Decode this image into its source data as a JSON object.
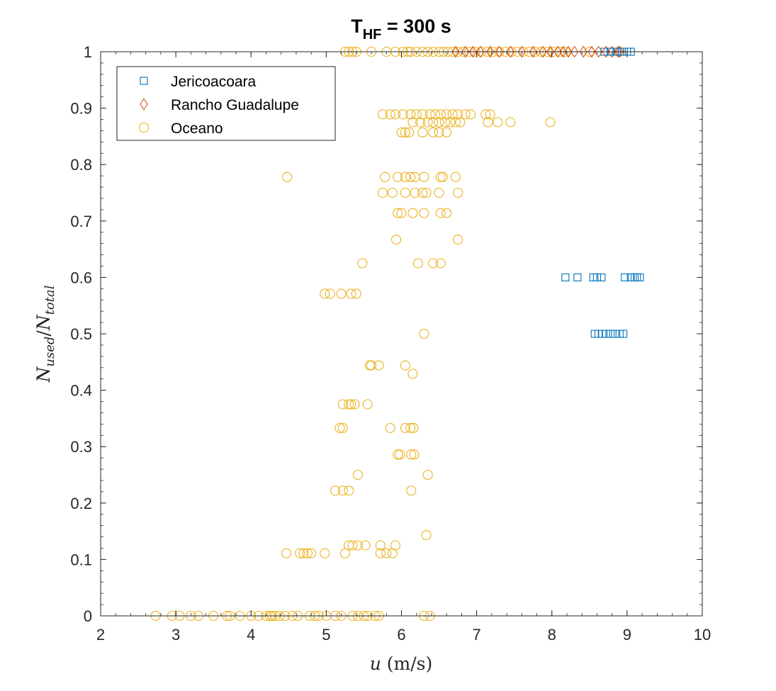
{
  "chart_data": {
    "type": "scatter",
    "title_main": "T",
    "title_sub": "HF",
    "title_rest": " = 300 s",
    "xlabel_var": "u",
    "xlabel_unit": " (m/s)",
    "ylabel": "N_used/N_total",
    "ylabel_parts": {
      "n1": "N",
      "s1": "used",
      "slash": "/",
      "n2": "N",
      "s2": "total"
    },
    "xlim": [
      2,
      10
    ],
    "ylim": [
      0,
      1
    ],
    "xticks": [
      2,
      3,
      4,
      5,
      6,
      7,
      8,
      9,
      10
    ],
    "yticks": [
      0,
      0.1,
      0.2,
      0.3,
      0.4,
      0.5,
      0.6,
      0.7,
      0.8,
      0.9,
      1
    ],
    "grid": false,
    "legend_placement": "top-left",
    "series": [
      {
        "name": "Jericoacoara",
        "marker": "square",
        "color": "#0072BD",
        "points": [
          [
            8.18,
            0.6
          ],
          [
            8.34,
            0.6
          ],
          [
            8.55,
            0.6
          ],
          [
            8.6,
            0.6
          ],
          [
            8.66,
            0.6
          ],
          [
            8.97,
            0.6
          ],
          [
            9.05,
            0.6
          ],
          [
            9.1,
            0.6
          ],
          [
            9.13,
            0.6
          ],
          [
            9.17,
            0.6
          ],
          [
            8.57,
            0.5
          ],
          [
            8.62,
            0.5
          ],
          [
            8.67,
            0.5
          ],
          [
            8.72,
            0.5
          ],
          [
            8.78,
            0.5
          ],
          [
            8.84,
            0.5
          ],
          [
            8.9,
            0.5
          ],
          [
            8.95,
            0.5
          ],
          [
            8.7,
            1
          ],
          [
            8.78,
            1
          ],
          [
            8.86,
            1
          ],
          [
            8.93,
            1
          ],
          [
            9.0,
            1
          ],
          [
            9.05,
            1
          ]
        ]
      },
      {
        "name": "Rancho Guadalupe",
        "marker": "diamond",
        "color": "#D95319",
        "points": [
          [
            6.72,
            1
          ],
          [
            6.85,
            1
          ],
          [
            6.95,
            1
          ],
          [
            7.05,
            1
          ],
          [
            7.18,
            1
          ],
          [
            7.3,
            1
          ],
          [
            7.45,
            1
          ],
          [
            7.6,
            1
          ],
          [
            7.75,
            1
          ],
          [
            7.88,
            1
          ],
          [
            7.98,
            1
          ],
          [
            8.08,
            1
          ],
          [
            8.15,
            1
          ],
          [
            8.22,
            1
          ],
          [
            8.3,
            1
          ],
          [
            8.42,
            1
          ],
          [
            8.53,
            1
          ],
          [
            8.62,
            1
          ],
          [
            8.72,
            1
          ],
          [
            8.8,
            1
          ],
          [
            8.88,
            1
          ],
          [
            8.9,
            1
          ]
        ]
      },
      {
        "name": "Oceano",
        "marker": "circle",
        "color": "#EDB120",
        "points": [
          [
            5.25,
            1
          ],
          [
            5.3,
            1
          ],
          [
            5.35,
            1
          ],
          [
            5.4,
            1
          ],
          [
            5.6,
            1
          ],
          [
            5.8,
            1
          ],
          [
            5.92,
            1
          ],
          [
            6.02,
            1
          ],
          [
            6.08,
            1
          ],
          [
            6.12,
            1
          ],
          [
            6.2,
            1
          ],
          [
            6.28,
            1
          ],
          [
            6.35,
            1
          ],
          [
            6.42,
            1
          ],
          [
            6.5,
            1
          ],
          [
            6.56,
            1
          ],
          [
            6.62,
            1
          ],
          [
            6.68,
            1
          ],
          [
            6.75,
            1
          ],
          [
            6.82,
            1
          ],
          [
            6.9,
            1
          ],
          [
            6.98,
            1
          ],
          [
            7.06,
            1
          ],
          [
            7.14,
            1
          ],
          [
            7.22,
            1
          ],
          [
            7.3,
            1
          ],
          [
            7.38,
            1
          ],
          [
            7.46,
            1
          ],
          [
            7.54,
            1
          ],
          [
            7.62,
            1
          ],
          [
            7.7,
            1
          ],
          [
            7.78,
            1
          ],
          [
            7.86,
            1
          ],
          [
            7.94,
            1
          ],
          [
            8.02,
            1
          ],
          [
            8.1,
            1
          ],
          [
            8.18,
            1
          ],
          [
            8.5,
            1
          ],
          [
            8.9,
            1
          ],
          [
            5.75,
            0.889
          ],
          [
            5.85,
            0.889
          ],
          [
            5.92,
            0.889
          ],
          [
            6.02,
            0.889
          ],
          [
            6.12,
            0.889
          ],
          [
            6.2,
            0.889
          ],
          [
            6.28,
            0.889
          ],
          [
            6.38,
            0.889
          ],
          [
            6.45,
            0.889
          ],
          [
            6.52,
            0.889
          ],
          [
            6.6,
            0.889
          ],
          [
            6.68,
            0.889
          ],
          [
            6.75,
            0.889
          ],
          [
            6.85,
            0.889
          ],
          [
            6.92,
            0.889
          ],
          [
            7.12,
            0.889
          ],
          [
            7.18,
            0.889
          ],
          [
            6.15,
            0.875
          ],
          [
            6.25,
            0.875
          ],
          [
            6.35,
            0.875
          ],
          [
            6.42,
            0.875
          ],
          [
            6.5,
            0.875
          ],
          [
            6.58,
            0.875
          ],
          [
            6.65,
            0.875
          ],
          [
            6.72,
            0.875
          ],
          [
            6.78,
            0.875
          ],
          [
            7.15,
            0.875
          ],
          [
            7.28,
            0.875
          ],
          [
            7.45,
            0.875
          ],
          [
            7.98,
            0.875
          ],
          [
            6.0,
            0.857
          ],
          [
            6.05,
            0.857
          ],
          [
            6.1,
            0.857
          ],
          [
            6.28,
            0.857
          ],
          [
            6.42,
            0.857
          ],
          [
            6.5,
            0.857
          ],
          [
            6.6,
            0.857
          ],
          [
            4.48,
            0.778
          ],
          [
            5.78,
            0.778
          ],
          [
            5.95,
            0.778
          ],
          [
            6.05,
            0.778
          ],
          [
            6.12,
            0.778
          ],
          [
            6.18,
            0.778
          ],
          [
            6.3,
            0.778
          ],
          [
            6.52,
            0.778
          ],
          [
            6.55,
            0.778
          ],
          [
            6.72,
            0.778
          ],
          [
            5.75,
            0.75
          ],
          [
            5.88,
            0.75
          ],
          [
            6.05,
            0.75
          ],
          [
            6.18,
            0.75
          ],
          [
            6.28,
            0.75
          ],
          [
            6.33,
            0.75
          ],
          [
            6.5,
            0.75
          ],
          [
            6.75,
            0.75
          ],
          [
            5.95,
            0.714
          ],
          [
            6.0,
            0.714
          ],
          [
            6.15,
            0.714
          ],
          [
            6.3,
            0.714
          ],
          [
            6.52,
            0.714
          ],
          [
            6.6,
            0.714
          ],
          [
            5.93,
            0.667
          ],
          [
            6.75,
            0.667
          ],
          [
            5.48,
            0.625
          ],
          [
            6.22,
            0.625
          ],
          [
            6.42,
            0.625
          ],
          [
            6.52,
            0.625
          ],
          [
            4.98,
            0.571
          ],
          [
            5.05,
            0.571
          ],
          [
            5.2,
            0.571
          ],
          [
            5.33,
            0.571
          ],
          [
            5.4,
            0.571
          ],
          [
            6.3,
            0.5
          ],
          [
            5.58,
            0.444
          ],
          [
            5.6,
            0.444
          ],
          [
            5.7,
            0.444
          ],
          [
            6.05,
            0.444
          ],
          [
            6.15,
            0.429
          ],
          [
            5.22,
            0.375
          ],
          [
            5.3,
            0.375
          ],
          [
            5.33,
            0.375
          ],
          [
            5.38,
            0.375
          ],
          [
            5.55,
            0.375
          ],
          [
            5.18,
            0.333
          ],
          [
            5.22,
            0.333
          ],
          [
            5.85,
            0.333
          ],
          [
            6.05,
            0.333
          ],
          [
            6.12,
            0.333
          ],
          [
            6.16,
            0.333
          ],
          [
            5.95,
            0.286
          ],
          [
            5.98,
            0.286
          ],
          [
            6.13,
            0.286
          ],
          [
            6.17,
            0.286
          ],
          [
            5.42,
            0.25
          ],
          [
            6.35,
            0.25
          ],
          [
            5.12,
            0.222
          ],
          [
            5.22,
            0.222
          ],
          [
            5.3,
            0.222
          ],
          [
            6.13,
            0.222
          ],
          [
            6.33,
            0.143
          ],
          [
            5.3,
            0.125
          ],
          [
            5.35,
            0.125
          ],
          [
            5.42,
            0.125
          ],
          [
            5.52,
            0.125
          ],
          [
            5.72,
            0.125
          ],
          [
            5.92,
            0.125
          ],
          [
            4.47,
            0.111
          ],
          [
            4.65,
            0.111
          ],
          [
            4.7,
            0.111
          ],
          [
            4.75,
            0.111
          ],
          [
            4.8,
            0.111
          ],
          [
            4.98,
            0.111
          ],
          [
            5.25,
            0.111
          ],
          [
            5.72,
            0.111
          ],
          [
            5.8,
            0.111
          ],
          [
            5.88,
            0.111
          ],
          [
            2.73,
            0
          ],
          [
            2.95,
            0
          ],
          [
            3.05,
            0
          ],
          [
            3.2,
            0
          ],
          [
            3.3,
            0
          ],
          [
            3.5,
            0
          ],
          [
            3.68,
            0
          ],
          [
            3.72,
            0
          ],
          [
            3.85,
            0
          ],
          [
            4.0,
            0
          ],
          [
            4.1,
            0
          ],
          [
            4.2,
            0
          ],
          [
            4.25,
            0
          ],
          [
            4.28,
            0
          ],
          [
            4.32,
            0
          ],
          [
            4.38,
            0
          ],
          [
            4.45,
            0
          ],
          [
            4.55,
            0
          ],
          [
            4.62,
            0
          ],
          [
            4.78,
            0
          ],
          [
            4.85,
            0
          ],
          [
            4.9,
            0
          ],
          [
            5.0,
            0
          ],
          [
            5.12,
            0
          ],
          [
            5.2,
            0
          ],
          [
            5.35,
            0
          ],
          [
            5.42,
            0
          ],
          [
            5.5,
            0
          ],
          [
            5.55,
            0
          ],
          [
            5.65,
            0
          ],
          [
            5.7,
            0
          ],
          [
            6.3,
            0
          ],
          [
            6.38,
            0
          ]
        ]
      }
    ]
  }
}
